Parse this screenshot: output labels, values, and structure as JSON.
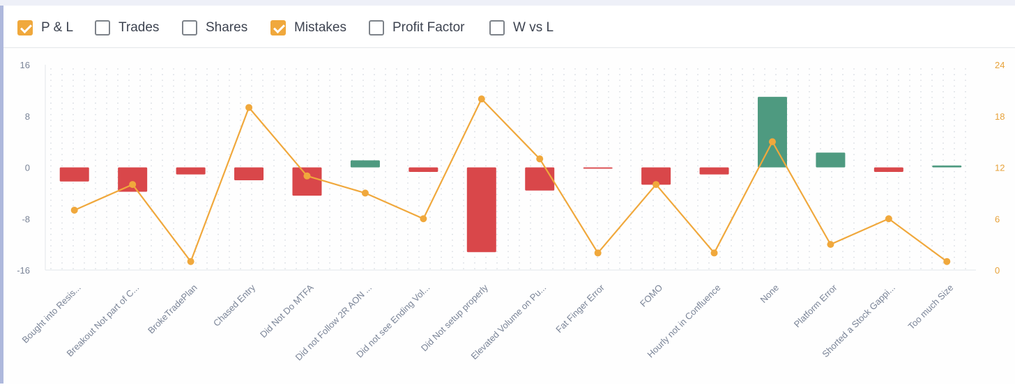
{
  "toolbar": {
    "items": [
      {
        "label": "P & L",
        "checked": true
      },
      {
        "label": "Trades",
        "checked": false
      },
      {
        "label": "Shares",
        "checked": false
      },
      {
        "label": "Mistakes",
        "checked": true
      },
      {
        "label": "Profit Factor",
        "checked": false
      },
      {
        "label": "W vs L",
        "checked": false
      }
    ]
  },
  "colors": {
    "positive_bar": "#4e9a80",
    "negative_bar": "#d9474a",
    "line": "#f0a83c",
    "left_axis_text": "#7a8497",
    "right_axis_text": "#e7a23a",
    "grid_dot": "#d9dde3",
    "checkbox_checked": "#f0a83c"
  },
  "chart_data": {
    "type": "bar",
    "categories": [
      "Bought into Resis...",
      "Breakout Not part of C...",
      "BrokeTradePlan",
      "Chased Entry",
      "Did Not Do MTFA",
      "Did not Follow 2R AON ...",
      "Did not see Ending Vol...",
      "Did Not setup properly",
      "Elevated Volume on Pu...",
      "Fat Finger Error",
      "FOMO",
      "Hourly not in Confluence",
      "None",
      "Platform Error",
      "Shorted a Stock Gappi...",
      "Too much Size"
    ],
    "series": [
      {
        "name": "P & L",
        "axis": "left",
        "kind": "bar",
        "values": [
          -2.2,
          -3.8,
          -1.1,
          -2.0,
          -4.4,
          1.1,
          -0.7,
          -13.2,
          -3.6,
          -0.2,
          -2.7,
          -1.1,
          11.0,
          2.3,
          -0.7,
          0.3
        ]
      },
      {
        "name": "Mistakes",
        "axis": "right",
        "kind": "line",
        "values": [
          7,
          10,
          1,
          19,
          11,
          9,
          6,
          20,
          13,
          2,
          10,
          2,
          15,
          3,
          6,
          1
        ]
      }
    ],
    "y_left": {
      "ticks": [
        "16",
        "8",
        "0",
        "-8",
        "-16"
      ],
      "range": [
        -16,
        16
      ]
    },
    "y_right": {
      "ticks": [
        "24",
        "18",
        "12",
        "6",
        "0"
      ],
      "range": [
        0,
        24
      ]
    },
    "grid": true
  }
}
